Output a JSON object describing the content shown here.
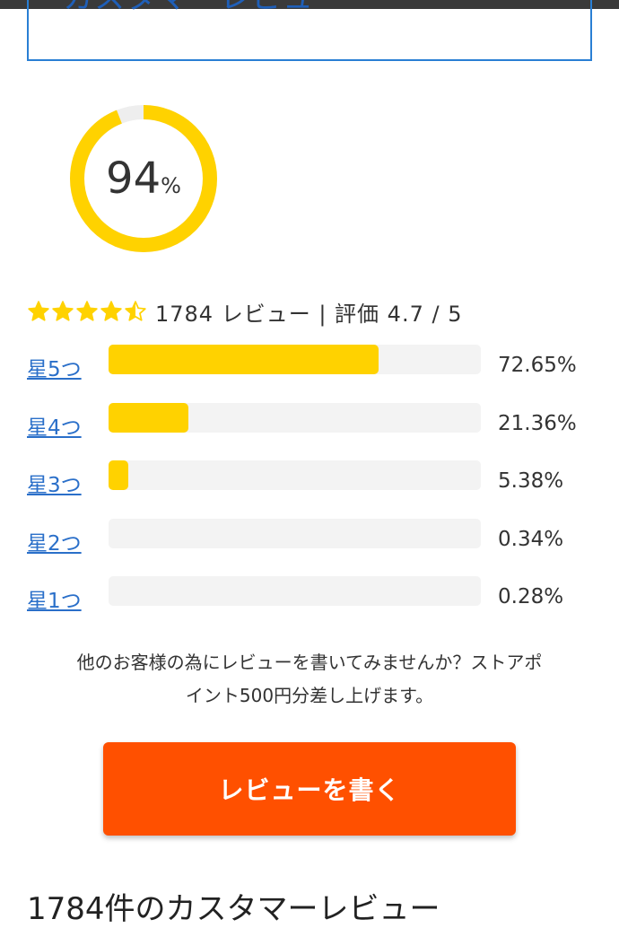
{
  "header": {
    "title": "カスタマーレビュー"
  },
  "donut": {
    "value": 94,
    "unit": "%",
    "color": "#ffd200",
    "track_color": "#eeeeee"
  },
  "summary": {
    "rating_stars": 4.5,
    "text": "1784 レビュー | 評価 4.7 / 5",
    "star_icon": "star-icon"
  },
  "rating_rows": [
    {
      "label": "星5つ",
      "percent_text": "72.65%",
      "fill_fraction": 0.7265
    },
    {
      "label": "星4つ",
      "percent_text": "21.36%",
      "fill_fraction": 0.2136
    },
    {
      "label": "星3つ",
      "percent_text": "5.38%",
      "fill_fraction": 0.0538
    },
    {
      "label": "星2つ",
      "percent_text": "0.34%",
      "fill_fraction": 0.0034
    },
    {
      "label": "星1つ",
      "percent_text": "0.28%",
      "fill_fraction": 0.0028
    }
  ],
  "cta": {
    "line1": "他のお客様の為にレビューを書いてみませんか？ストアポ",
    "line2": "イント500円分差し上げます。",
    "button_label": "レビューを書く",
    "button_color": "#ff5000"
  },
  "reviews_title": "1784件のカスタマーレビュー",
  "colors": {
    "link": "#2a6fc9",
    "bar_fill": "#ffd200",
    "bar_track": "#f3f3f3",
    "star": "#ffd200"
  }
}
